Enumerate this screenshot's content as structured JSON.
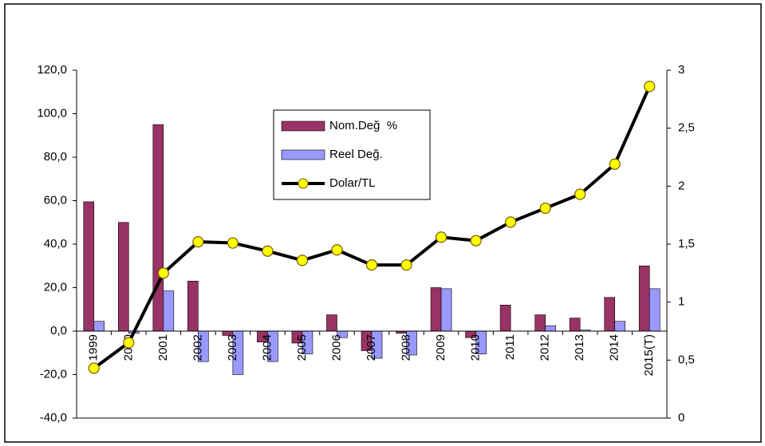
{
  "chart_data": {
    "type": "bar-line",
    "categories": [
      "1999",
      "2000",
      "2001",
      "2002",
      "2003",
      "2004",
      "2005",
      "2006",
      "2007",
      "2008",
      "2009",
      "2010",
      "2011",
      "2012",
      "2013",
      "2014",
      "2015(T)"
    ],
    "series": [
      {
        "name": "Nom.Değ  %",
        "type": "bar",
        "color": "#993366",
        "values": [
          59.5,
          50,
          95,
          23,
          -2,
          -5,
          -5.5,
          7.5,
          -9,
          -1,
          20,
          -3,
          12,
          7.5,
          6,
          15.5,
          30
        ]
      },
      {
        "name": "Reel Değ.",
        "type": "bar",
        "color": "#9999ff",
        "values": [
          4.5,
          -1,
          18.5,
          -14,
          -20,
          -14,
          -10.5,
          -3,
          -12.5,
          -11,
          19.5,
          -10.5,
          0,
          2.5,
          0.5,
          4.5,
          19.5
        ]
      },
      {
        "name": "Dolar/TL",
        "type": "line",
        "axis": "y2",
        "color": "#000000",
        "marker_color": "#ffff00",
        "values": [
          0.43,
          0.65,
          1.25,
          1.52,
          1.51,
          1.44,
          1.36,
          1.45,
          1.32,
          1.32,
          1.56,
          1.53,
          1.69,
          1.81,
          1.93,
          2.19,
          2.86
        ]
      }
    ],
    "ylim": [
      -40,
      120
    ],
    "yticks": [
      {
        "value": -40,
        "label": "-40,0"
      },
      {
        "value": -20,
        "label": "-20,0"
      },
      {
        "value": 0,
        "label": "0,0"
      },
      {
        "value": 20,
        "label": "20,0"
      },
      {
        "value": 40,
        "label": "40,0"
      },
      {
        "value": 60,
        "label": "60,0"
      },
      {
        "value": 80,
        "label": "80,0"
      },
      {
        "value": 100,
        "label": "100,0"
      },
      {
        "value": 120,
        "label": "120,0"
      }
    ],
    "y2lim": [
      0,
      3
    ],
    "y2ticks": [
      0,
      {
        "value": 0.5,
        "label": "0,5"
      },
      1,
      {
        "value": 1.5,
        "label": "1,5"
      },
      2,
      {
        "value": 2.5,
        "label": "2,5"
      },
      3
    ],
    "grid": false,
    "legend_position": "top-center"
  }
}
